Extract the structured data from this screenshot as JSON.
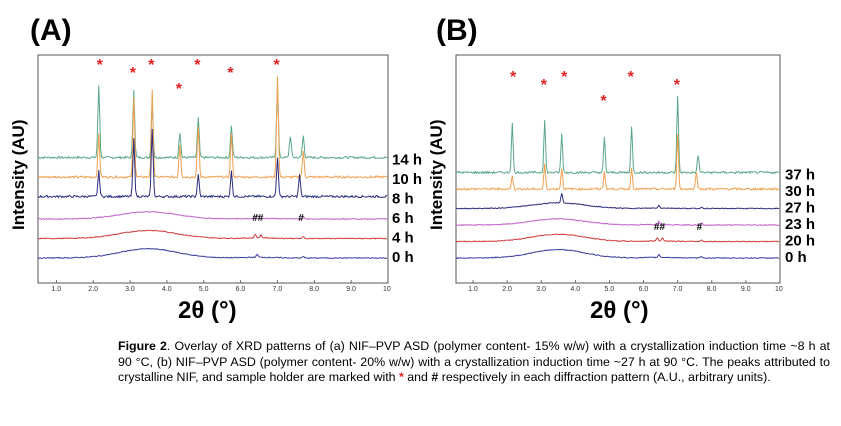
{
  "chart_data": [
    {
      "type": "line",
      "panel_label": "(A)",
      "ylabel": "Intensity (AU)",
      "xlabel": "2θ (°)",
      "xlim": [
        0.5,
        10
      ],
      "xticks": [
        "1.0",
        "2.0",
        "3.0",
        "4.0",
        "5.0",
        "6.0",
        "7.0",
        "8.0",
        "9.0",
        "10"
      ],
      "series": [
        {
          "name": "14 h",
          "color": "#5aa887",
          "peaks": [
            [
              2.15,
              1.0
            ],
            [
              3.1,
              0.95
            ],
            [
              3.6,
              0.75
            ],
            [
              4.35,
              0.35
            ],
            [
              4.85,
              0.55
            ],
            [
              5.75,
              0.45
            ],
            [
              7.0,
              1.0
            ],
            [
              7.35,
              0.3
            ],
            [
              7.7,
              0.3
            ]
          ]
        },
        {
          "name": "10 h",
          "color": "#f0a050",
          "peaks": [
            [
              2.15,
              0.6
            ],
            [
              3.1,
              1.1
            ],
            [
              3.6,
              1.2
            ],
            [
              4.35,
              0.45
            ],
            [
              4.85,
              0.7
            ],
            [
              5.75,
              0.6
            ],
            [
              7.0,
              1.4
            ],
            [
              7.7,
              0.35
            ]
          ]
        },
        {
          "name": "8 h",
          "color": "#2b2d7e",
          "peaks": [
            [
              2.15,
              0.35
            ],
            [
              3.1,
              0.8
            ],
            [
              3.6,
              0.95
            ],
            [
              4.85,
              0.3
            ],
            [
              5.75,
              0.35
            ],
            [
              7.0,
              0.55
            ],
            [
              7.6,
              0.3
            ]
          ]
        },
        {
          "name": "6 h",
          "color": "#c060c8",
          "peaks": [
            [
              6.45,
              0.12
            ],
            [
              7.7,
              0.08
            ]
          ],
          "hump": 0.25
        },
        {
          "name": "4 h",
          "color": "#d03c3c",
          "peaks": [
            [
              6.4,
              0.12
            ],
            [
              6.55,
              0.1
            ],
            [
              7.7,
              0.06
            ]
          ],
          "hump": 0.28
        },
        {
          "name": "0 h",
          "color": "#3c3ca0",
          "peaks": [
            [
              6.45,
              0.1
            ],
            [
              7.7,
              0.05
            ]
          ],
          "hump": 0.32
        }
      ],
      "markers": {
        "stars_x": [
          2.2,
          3.1,
          3.6,
          4.35,
          4.85,
          5.75,
          7.0
        ],
        "hash_labels": [
          {
            "x": 6.45,
            "text": "##"
          },
          {
            "x": 7.7,
            "text": "#"
          }
        ]
      }
    },
    {
      "type": "line",
      "panel_label": "(B)",
      "ylabel": "Intensity (AU)",
      "xlabel": "2θ (°)",
      "xlim": [
        0.5,
        10
      ],
      "xticks": [
        "1.0",
        "2.0",
        "3.0",
        "4.0",
        "5.0",
        "6.0",
        "7.0",
        "8.0",
        "9.0",
        "10"
      ],
      "series": [
        {
          "name": "37 h",
          "color": "#5aa887",
          "peaks": [
            [
              2.15,
              0.7
            ],
            [
              3.1,
              0.75
            ],
            [
              3.6,
              0.55
            ],
            [
              4.85,
              0.5
            ],
            [
              5.65,
              0.65
            ],
            [
              7.0,
              1.1
            ],
            [
              7.6,
              0.25
            ]
          ]
        },
        {
          "name": "30 h",
          "color": "#f0a050",
          "peaks": [
            [
              2.15,
              0.2
            ],
            [
              3.1,
              0.35
            ],
            [
              3.6,
              0.3
            ],
            [
              4.85,
              0.25
            ],
            [
              5.65,
              0.3
            ],
            [
              7.0,
              0.8
            ],
            [
              7.55,
              0.25
            ]
          ]
        },
        {
          "name": "27 h",
          "color": "#2b2d7e",
          "peaks": [
            [
              3.6,
              0.35
            ],
            [
              6.45,
              0.1
            ],
            [
              7.7,
              0.06
            ]
          ],
          "hump": 0.2
        },
        {
          "name": "23 h",
          "color": "#c060c8",
          "peaks": [
            [
              6.45,
              0.12
            ],
            [
              7.7,
              0.08
            ]
          ],
          "hump": 0.22
        },
        {
          "name": "20 h",
          "color": "#d03c3c",
          "peaks": [
            [
              6.4,
              0.12
            ],
            [
              6.55,
              0.12
            ],
            [
              7.7,
              0.06
            ]
          ],
          "hump": 0.26
        },
        {
          "name": "0 h",
          "color": "#3c3ca0",
          "peaks": [
            [
              6.45,
              0.1
            ],
            [
              7.7,
              0.06
            ]
          ],
          "hump": 0.3
        }
      ],
      "markers": {
        "stars_x": [
          2.2,
          3.1,
          3.7,
          4.85,
          5.65,
          7.0
        ],
        "hash_labels": [
          {
            "x": 6.45,
            "text": "##"
          },
          {
            "x": 7.7,
            "text": "#"
          }
        ]
      }
    }
  ],
  "caption": {
    "figure_label": "Figure 2",
    "text1": ". Overlay of XRD patterns of (a) NIF–PVP ASD (polymer content- 15% w/w) with a crystallization induction time ~8 h at 90 °C, (b) NIF–PVP ASD (polymer content- 20% w/w) with a crystallization induction time ~27 h at 90 °C. The peaks attributed to crystalline NIF, and sample holder are marked with ",
    "star": "*",
    "text2": " and ",
    "hash": "#",
    "text3": " respectively in each diffraction pattern (A.U., arbitrary units)."
  }
}
